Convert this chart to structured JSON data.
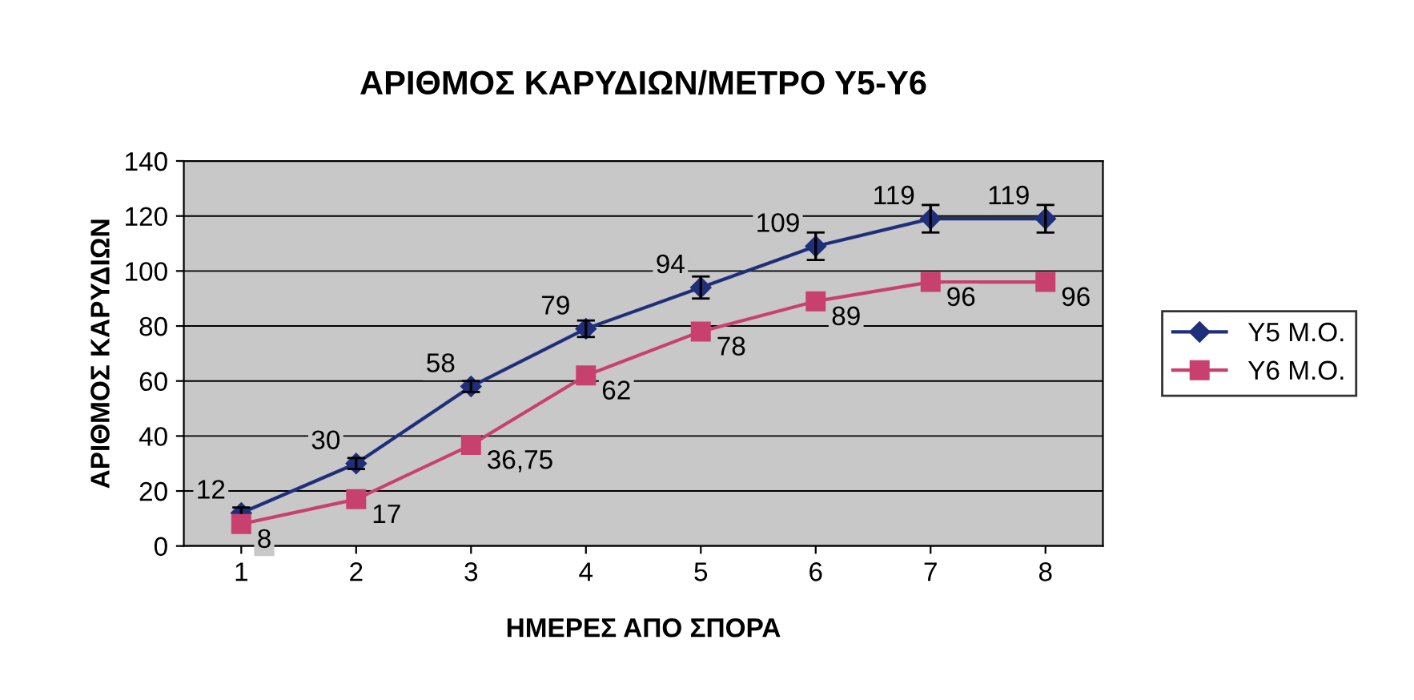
{
  "chart_data": {
    "type": "line",
    "title": "ΑΡΙΘΜΟΣ ΚΑΡΥΔΙΩΝ/ΜΕΤΡΟ Υ5-Υ6",
    "xlabel": "ΗΜΕΡΕΣ ΑΠΟ ΣΠΟΡΑ",
    "ylabel": "ΑΡΙΘΜΟΣ ΚΑΡΥΔΙΩΝ",
    "categories": [
      "1",
      "2",
      "3",
      "4",
      "5",
      "6",
      "7",
      "8"
    ],
    "series": [
      {
        "name": "Υ5 Μ.Ο.",
        "color": "#1f2f7a",
        "marker": "diamond",
        "values": [
          12,
          30,
          58,
          79,
          94,
          109,
          119,
          119
        ],
        "errors": [
          2,
          2,
          2,
          3,
          4,
          5,
          5,
          5
        ],
        "value_labels": [
          "12",
          "30",
          "58",
          "79",
          "94",
          "109",
          "119",
          "119"
        ]
      },
      {
        "name": "Υ6 Μ.Ο.",
        "color": "#c8416e",
        "marker": "square",
        "values": [
          8,
          17,
          36.75,
          62,
          78,
          89,
          96,
          96
        ],
        "value_labels": [
          "8",
          "17",
          "36,75",
          "62",
          "78",
          "89",
          "96",
          "96"
        ]
      }
    ],
    "ylim": [
      0,
      140
    ],
    "yticks": [
      0,
      20,
      40,
      60,
      80,
      100,
      120,
      140
    ],
    "grid": "y",
    "legend": "right"
  }
}
